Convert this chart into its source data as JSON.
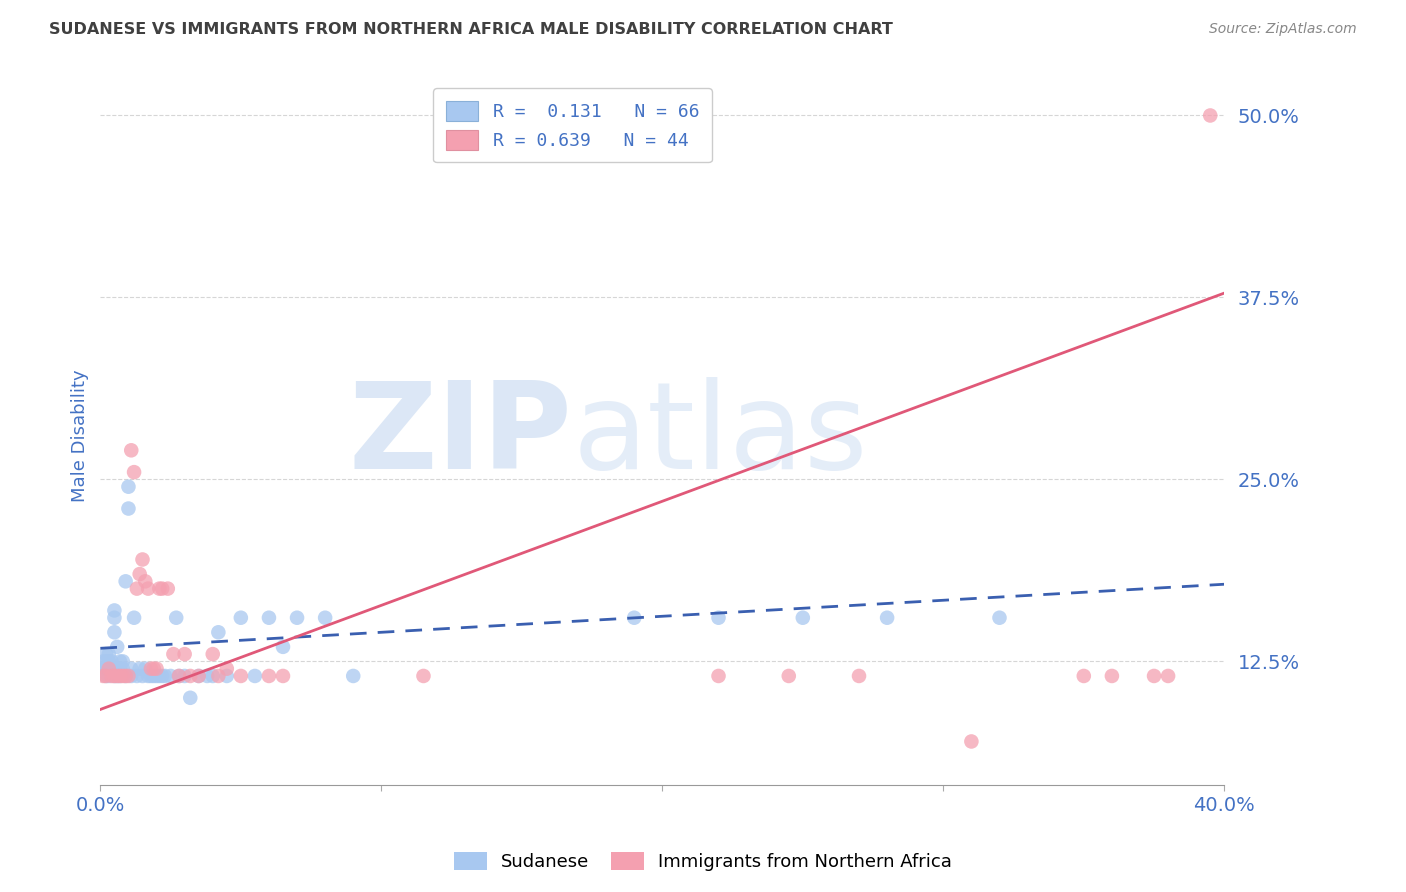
{
  "title": "SUDANESE VS IMMIGRANTS FROM NORTHERN AFRICA MALE DISABILITY CORRELATION CHART",
  "source": "Source: ZipAtlas.com",
  "ylabel": "Male Disability",
  "xlim": [
    0.0,
    0.4
  ],
  "ylim": [
    0.04,
    0.52
  ],
  "yticks": [
    0.125,
    0.25,
    0.375,
    0.5
  ],
  "ytick_labels": [
    "12.5%",
    "25.0%",
    "37.5%",
    "50.0%"
  ],
  "xticks": [
    0.0,
    0.1,
    0.2,
    0.3,
    0.4
  ],
  "xtick_labels": [
    "0.0%",
    "",
    "",
    "",
    "40.0%"
  ],
  "watermark_part1": "ZIP",
  "watermark_part2": "atlas",
  "legend_entries": [
    {
      "label": "R =  0.131   N = 66",
      "color": "#a8c8f0"
    },
    {
      "label": "R = 0.639   N = 44",
      "color": "#f4a0b0"
    }
  ],
  "series1_color": "#a8c8f0",
  "series2_color": "#f4a0b0",
  "series1_line_color": "#3a5fb0",
  "series2_line_color": "#e05878",
  "background_color": "#ffffff",
  "grid_color": "#cccccc",
  "title_color": "#404040",
  "tick_label_color": "#4472c4",
  "sudanese_x": [
    0.001,
    0.001,
    0.001,
    0.002,
    0.002,
    0.002,
    0.002,
    0.003,
    0.003,
    0.003,
    0.003,
    0.004,
    0.004,
    0.004,
    0.005,
    0.005,
    0.005,
    0.005,
    0.006,
    0.006,
    0.006,
    0.007,
    0.007,
    0.007,
    0.008,
    0.008,
    0.009,
    0.009,
    0.01,
    0.01,
    0.011,
    0.011,
    0.012,
    0.013,
    0.014,
    0.015,
    0.016,
    0.017,
    0.018,
    0.019,
    0.02,
    0.021,
    0.022,
    0.023,
    0.025,
    0.027,
    0.028,
    0.03,
    0.032,
    0.035,
    0.038,
    0.04,
    0.042,
    0.045,
    0.05,
    0.055,
    0.06,
    0.065,
    0.07,
    0.08,
    0.09,
    0.19,
    0.22,
    0.25,
    0.28,
    0.32
  ],
  "sudanese_y": [
    0.125,
    0.12,
    0.118,
    0.13,
    0.125,
    0.12,
    0.115,
    0.13,
    0.125,
    0.12,
    0.115,
    0.125,
    0.12,
    0.118,
    0.16,
    0.155,
    0.145,
    0.115,
    0.135,
    0.12,
    0.115,
    0.125,
    0.12,
    0.115,
    0.125,
    0.12,
    0.18,
    0.115,
    0.245,
    0.23,
    0.115,
    0.12,
    0.155,
    0.115,
    0.12,
    0.115,
    0.12,
    0.115,
    0.115,
    0.115,
    0.115,
    0.115,
    0.115,
    0.115,
    0.115,
    0.155,
    0.115,
    0.115,
    0.1,
    0.115,
    0.115,
    0.115,
    0.145,
    0.115,
    0.155,
    0.115,
    0.155,
    0.135,
    0.155,
    0.155,
    0.115,
    0.155,
    0.155,
    0.155,
    0.155,
    0.155
  ],
  "immigrants_x": [
    0.001,
    0.002,
    0.003,
    0.004,
    0.005,
    0.006,
    0.007,
    0.008,
    0.009,
    0.01,
    0.011,
    0.012,
    0.013,
    0.014,
    0.015,
    0.016,
    0.017,
    0.018,
    0.019,
    0.02,
    0.021,
    0.022,
    0.024,
    0.026,
    0.028,
    0.03,
    0.032,
    0.035,
    0.04,
    0.042,
    0.045,
    0.05,
    0.06,
    0.065,
    0.115,
    0.22,
    0.245,
    0.27,
    0.31,
    0.35,
    0.36,
    0.375,
    0.38,
    0.395
  ],
  "immigrants_y": [
    0.115,
    0.115,
    0.12,
    0.115,
    0.115,
    0.115,
    0.115,
    0.115,
    0.115,
    0.115,
    0.27,
    0.255,
    0.175,
    0.185,
    0.195,
    0.18,
    0.175,
    0.12,
    0.12,
    0.12,
    0.175,
    0.175,
    0.175,
    0.13,
    0.115,
    0.13,
    0.115,
    0.115,
    0.13,
    0.115,
    0.12,
    0.115,
    0.115,
    0.115,
    0.115,
    0.115,
    0.115,
    0.115,
    0.07,
    0.115,
    0.115,
    0.115,
    0.115,
    0.5
  ],
  "blue_line_x": [
    0.0,
    0.4
  ],
  "blue_line_y": [
    0.134,
    0.178
  ],
  "pink_line_x": [
    0.0,
    0.4
  ],
  "pink_line_y": [
    0.092,
    0.378
  ]
}
